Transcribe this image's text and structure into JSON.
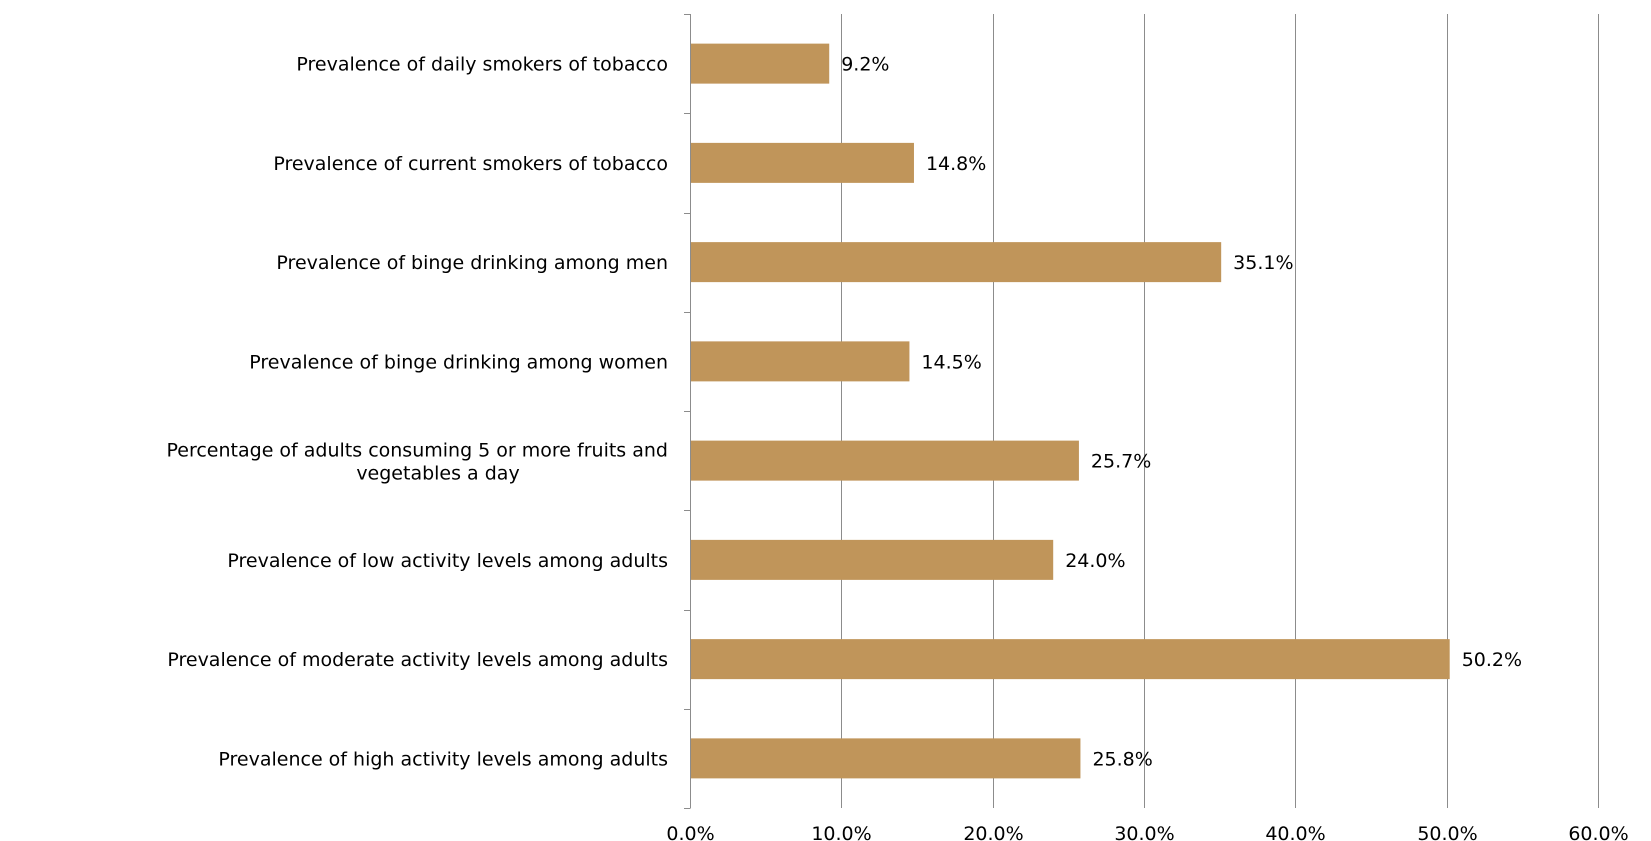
{
  "colors": {
    "bar": "#C0955A",
    "grid": "#8C8C8C",
    "axis": "#8C8C8C",
    "text": "#000000",
    "background": "#FFFFFF"
  },
  "chart_data": {
    "type": "bar",
    "orientation": "horizontal",
    "categories": [
      "Prevalence of daily smokers of tobacco",
      "Prevalence of current smokers of tobacco",
      "Prevalence of binge drinking among men",
      "Prevalence of binge drinking among women",
      "Percentage of adults consuming 5 or more fruits and vegetables a day",
      "Prevalence of low activity levels among adults",
      "Prevalence of moderate activity levels among adults",
      "Prevalence of high activity levels among adults"
    ],
    "values": [
      9.2,
      14.8,
      35.1,
      14.5,
      25.7,
      24.0,
      50.2,
      25.8
    ],
    "data_labels": [
      "9.2%",
      "14.8%",
      "35.1%",
      "14.5%",
      "25.7%",
      "24.0%",
      "50.2%",
      "25.8%"
    ],
    "x_ticks": [
      "0.0%",
      "10.0%",
      "20.0%",
      "30.0%",
      "40.0%",
      "50.0%",
      "60.0%"
    ],
    "xlim": [
      0,
      60
    ],
    "grid": true,
    "legend": false,
    "title": "",
    "xlabel": "",
    "ylabel": ""
  }
}
